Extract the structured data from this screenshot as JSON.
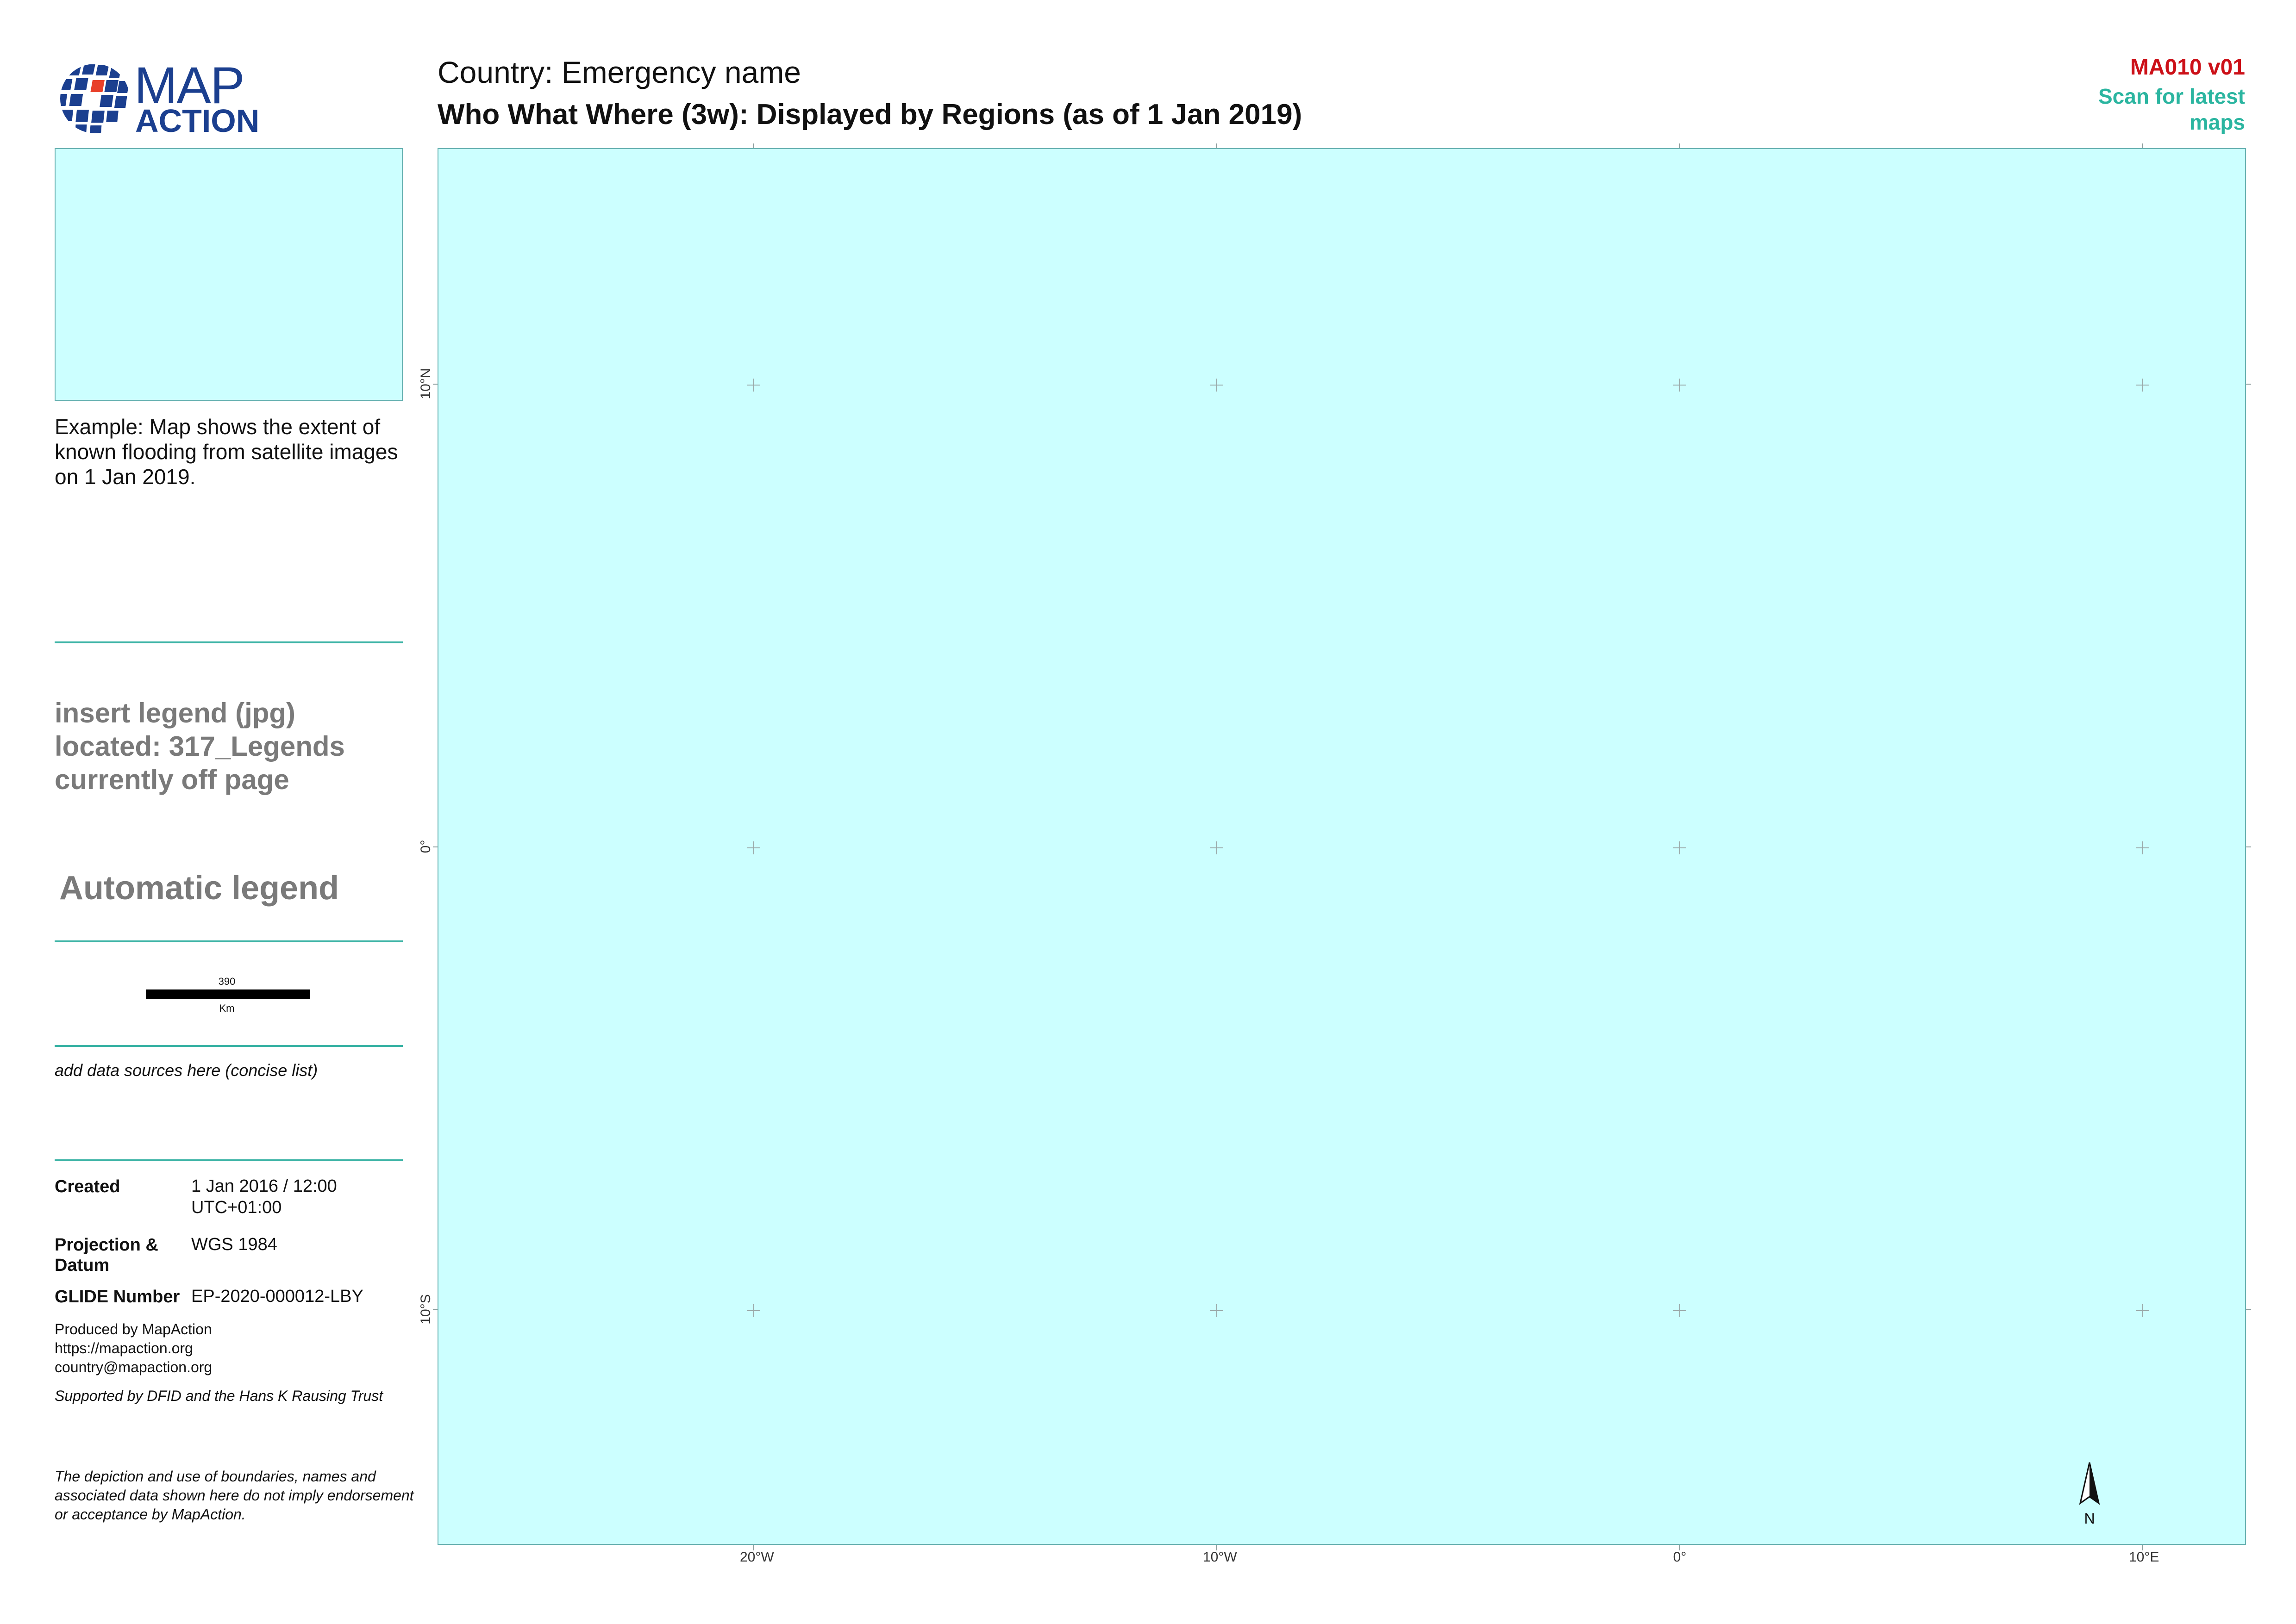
{
  "header": {
    "logo_text_top": "MAP",
    "logo_text_bottom": "ACTION",
    "title": "Country: Emergency name",
    "subtitle": "Who What Where (3w): Displayed by Regions (as of 1 Jan 2019)",
    "map_code": "MA010 v01",
    "scan_note": "Scan for latest maps"
  },
  "sidebar": {
    "overview_caption": "Example: Map shows the extent of known flooding from satellite images on 1 Jan 2019.",
    "legend_note_lines": [
      "insert legend (jpg)",
      "located: 317_Legends",
      "currently off page"
    ],
    "automatic_legend": "Automatic legend",
    "scalebar": {
      "value": "390",
      "unit": "Km"
    },
    "data_sources": "add data sources here (concise list)",
    "metadata": [
      {
        "label": "Created",
        "value": "1 Jan 2016 / 12:00 UTC+01:00"
      },
      {
        "label": "Projection & Datum",
        "value": "WGS 1984"
      },
      {
        "label": "GLIDE Number",
        "value": "EP-2020-000012-LBY"
      }
    ],
    "producer_lines": [
      "Produced by MapAction",
      "https://mapaction.org",
      "country@mapaction.org"
    ],
    "support": "Supported by DFID and the Hans K Rausing Trust",
    "disclaimer": "The depiction and use of boundaries, names and associated data shown here do not imply endorsement or acceptance by MapAction."
  },
  "map": {
    "water_color": "#ccffff",
    "longitude_labels": [
      "20°W",
      "10°W",
      "0°",
      "10°E"
    ],
    "latitude_labels": [
      "10°N",
      "0°",
      "10°S"
    ],
    "north_arrow_label": "N"
  },
  "colors": {
    "brand_blue": "#1b3f8f",
    "brand_red": "#e8402a",
    "accent_teal": "#3bb3a5",
    "code_red": "#cc1018"
  }
}
